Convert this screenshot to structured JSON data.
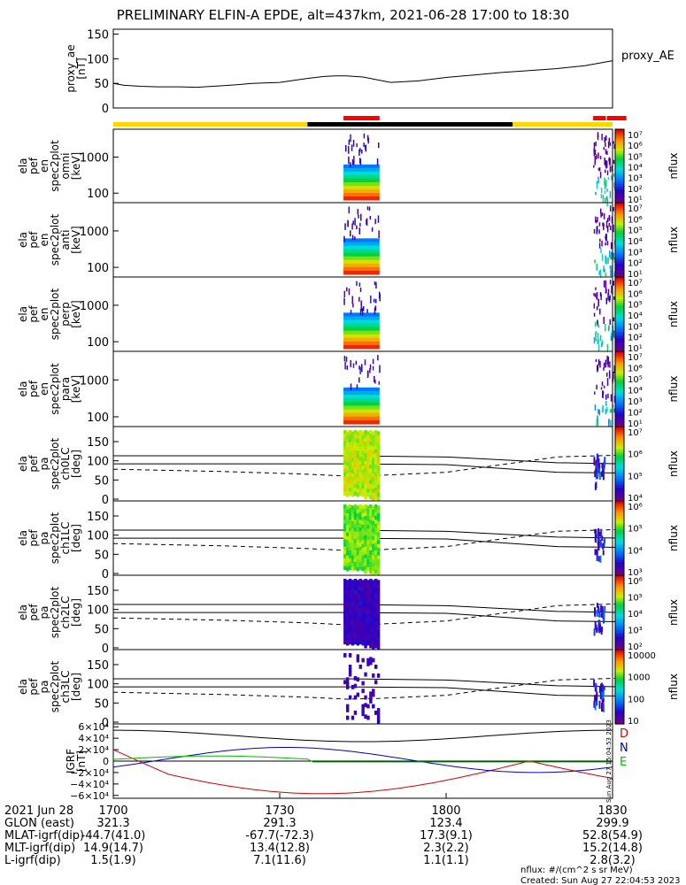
{
  "title": "PRELIMINARY ELFIN-A EPDE, alt=437km, 2021-06-28 17:00 to 18:30",
  "chart_data": [
    {
      "panel": "proxy_ae",
      "type": "line",
      "ylabel": [
        "proxy_ae",
        "[nT]"
      ],
      "yticks": [
        "150",
        "100",
        "50",
        "0"
      ],
      "ylim": [
        0,
        160
      ],
      "series": [
        {
          "name": "proxy_AE",
          "x": [
            0,
            2,
            5,
            8,
            12,
            15,
            18,
            22,
            25,
            30,
            35,
            38,
            40,
            42,
            45,
            50,
            55,
            60,
            65,
            70,
            75,
            80,
            85,
            90
          ],
          "values": [
            50,
            46,
            44,
            43,
            43,
            42,
            44,
            47,
            50,
            52,
            60,
            64,
            65,
            65,
            63,
            52,
            55,
            62,
            67,
            72,
            76,
            80,
            86,
            96
          ]
        }
      ]
    },
    {
      "panel": "spec_omni",
      "type": "heatmap",
      "ylabel": [
        "ela",
        "pef",
        "en",
        "spec2plot",
        "omni",
        "[keV]"
      ],
      "yticks": [
        "1000",
        "100"
      ],
      "colorbar_ticks": [
        "10⁷",
        "10⁶",
        "10⁵",
        "10⁴",
        "10³",
        "10²",
        "10¹"
      ],
      "colorbar_label": "nflux"
    },
    {
      "panel": "spec_anti",
      "type": "heatmap",
      "ylabel": [
        "ela",
        "pef",
        "en",
        "spec2plot",
        "anti",
        "[keV]"
      ],
      "yticks": [
        "1000",
        "100"
      ],
      "colorbar_ticks": [
        "10⁷",
        "10⁶",
        "10⁵",
        "10⁴",
        "10³",
        "10²",
        "10¹"
      ],
      "colorbar_label": "nflux"
    },
    {
      "panel": "spec_perp",
      "type": "heatmap",
      "ylabel": [
        "ela",
        "pef",
        "en",
        "spec2plot",
        "perp",
        "[keV]"
      ],
      "yticks": [
        "1000",
        "100"
      ],
      "colorbar_ticks": [
        "10⁷",
        "10⁶",
        "10⁵",
        "10⁴",
        "10³",
        "10²",
        "10¹"
      ],
      "colorbar_label": "nflux"
    },
    {
      "panel": "spec_para",
      "type": "heatmap",
      "ylabel": [
        "ela",
        "pef",
        "en",
        "spec2plot",
        "para",
        "[keV]"
      ],
      "yticks": [
        "1000",
        "100"
      ],
      "colorbar_ticks": [
        "10⁷",
        "10⁶",
        "10⁵",
        "10⁴",
        "10³",
        "10²",
        "10¹"
      ],
      "colorbar_label": "nflux"
    },
    {
      "panel": "pa_ch0",
      "type": "heatmap",
      "ylabel": [
        "ela",
        "pef",
        "pa",
        "spec2plot",
        "ch0LC",
        "[deg]"
      ],
      "yticks": [
        "150",
        "100",
        "50",
        "0"
      ],
      "colorbar_ticks": [
        "10⁷",
        "10⁶",
        "10⁵",
        "10⁴"
      ],
      "colorbar_label": "nflux"
    },
    {
      "panel": "pa_ch1",
      "type": "heatmap",
      "ylabel": [
        "ela",
        "pef",
        "pa",
        "spec2plot",
        "ch1LC",
        "[deg]"
      ],
      "yticks": [
        "150",
        "100",
        "50",
        "0"
      ],
      "colorbar_ticks": [
        "10⁶",
        "10⁵",
        "10⁴",
        "10³"
      ],
      "colorbar_label": "nflux"
    },
    {
      "panel": "pa_ch2",
      "type": "heatmap",
      "ylabel": [
        "ela",
        "pef",
        "pa",
        "spec2plot",
        "ch2LC",
        "[deg]"
      ],
      "yticks": [
        "150",
        "100",
        "50",
        "0"
      ],
      "colorbar_ticks": [
        "10⁶",
        "10⁵",
        "10⁴",
        "10³",
        "10²"
      ],
      "colorbar_label": "nflux"
    },
    {
      "panel": "pa_ch3",
      "type": "heatmap",
      "ylabel": [
        "ela",
        "pef",
        "pa",
        "spec2plot",
        "ch3LC",
        "[deg]"
      ],
      "yticks": [
        "150",
        "100",
        "50",
        "0"
      ],
      "colorbar_ticks": [
        "10000",
        "1000",
        "100",
        "10"
      ],
      "colorbar_label": "nflux"
    },
    {
      "panel": "igrf",
      "type": "line",
      "ylabel": [
        "IGRF",
        "[nT]"
      ],
      "yticks": [
        "6×10⁴",
        "4×10⁴",
        "2×10⁴",
        "0",
        "−2×10⁴",
        "−4×10⁴",
        "−6×10⁴"
      ],
      "ylim": [
        -65000,
        65000
      ],
      "legend": [
        "D",
        "N",
        "E"
      ],
      "colors": {
        "D": "#d40000",
        "N": "#0000cc",
        "E": "#00bb00"
      }
    }
  ],
  "side_labels": {
    "proxy_ae": "proxy_AE",
    "data_credit": "Sun Aug 27 15:04:53 2023"
  },
  "state_bar_colors": {
    "day": "#ffd700",
    "night": "#000000",
    "science": "#ff0000"
  },
  "xaxis": {
    "date": "2021 Jun 28",
    "ticks": [
      "1700",
      "1730",
      "1800",
      "1830"
    ],
    "rows": [
      {
        "label": "GLON (east)",
        "values": [
          "321.3",
          "291.3",
          "123.4",
          "299.9"
        ]
      },
      {
        "label": "MLAT-igrf(dip)",
        "values": [
          "-44.7(41.0)",
          "-67.7(-72.3)",
          "17.3(9.1)",
          "52.8(54.9)"
        ]
      },
      {
        "label": "MLT-igrf(dip)",
        "values": [
          "14.9(14.7)",
          "13.4(12.8)",
          "2.3(2.2)",
          "15.2(14.8)"
        ]
      },
      {
        "label": "L-igrf(dip)",
        "values": [
          "1.5(1.9)",
          "7.1(11.6)",
          "1.1(1.1)",
          "2.8(3.2)"
        ]
      }
    ]
  },
  "footer": {
    "units": "nflux: #/(cm^2 s sr MeV)",
    "created": "Created: Sun Aug 27 22:04:53 2023"
  }
}
